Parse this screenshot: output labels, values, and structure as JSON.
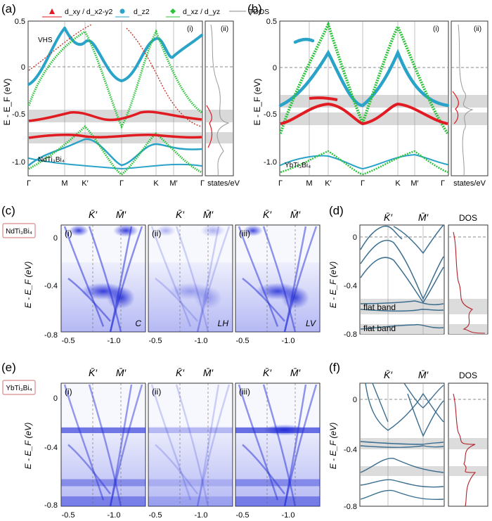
{
  "figure": {
    "panel_letters": {
      "a": "(a)",
      "b": "(b)",
      "c": "(c)",
      "d": "(d)",
      "e": "(e)",
      "f": "(f)"
    },
    "legend": {
      "red": "d_xy / d_x2-y2",
      "cyan": "d_z2",
      "green": "d_xz / d_yz",
      "tdos": "TDOS"
    },
    "colors": {
      "red": "#e11b22",
      "cyan": "#2aa3c9",
      "green": "#2cc33a",
      "grey": "#777777",
      "arpes": "#2a33d8",
      "dft_line": "#3b6e8f",
      "dos_line": "#b2202a"
    },
    "top": {
      "a": {
        "material": "NdTi₃Bi₄",
        "sub_i": "(i)",
        "sub_ii": "(ii)",
        "vhs": "VHS",
        "yticks": [
          "0.5",
          "0",
          "-0.5",
          "-1.0"
        ],
        "ylabel": "E - E_F (eV)",
        "kpath": [
          "Γ",
          "M",
          "K′",
          "Γ",
          "K",
          "M′",
          "Γ"
        ],
        "dos_unit": "states/eV"
      },
      "b": {
        "material": "YbTi₃Bi₄",
        "sub_i": "(i)",
        "sub_ii": "(ii)",
        "yticks": [
          "0.5",
          "0",
          "-0.5",
          "-1.0"
        ],
        "ylabel": "E - E_F (eV)",
        "kpath": [
          "Γ",
          "M",
          "K′",
          "Γ",
          "K",
          "M′",
          "Γ"
        ],
        "dos_unit": "states/eV"
      }
    },
    "arpes": {
      "c": {
        "material": "NdTi₃Bi₄",
        "panels": [
          {
            "sub": "(i)",
            "pol": "C"
          },
          {
            "sub": "(ii)",
            "pol": "LH"
          },
          {
            "sub": "(iii)",
            "pol": "LV"
          }
        ],
        "yticks": [
          "0",
          "-0.4",
          "-0.8"
        ],
        "xticks": [
          "-0.5",
          "-1.0"
        ],
        "kpoints": [
          "K̄′",
          "M̄′"
        ],
        "ylabel": "E - E_F (eV)"
      },
      "e": {
        "material": "YbTi₃Bi₄",
        "panels": [
          {
            "sub": "(i)",
            "pol": ""
          },
          {
            "sub": "(ii)",
            "pol": ""
          },
          {
            "sub": "(iii)",
            "pol": ""
          }
        ],
        "yticks": [
          "0",
          "-0.4",
          "-0.8"
        ],
        "xticks": [
          "-0.5",
          "-1.0"
        ],
        "kpoints": [
          "K̄′",
          "M̄′"
        ],
        "ylabel": "E - E_F (eV)"
      }
    },
    "calc": {
      "d": {
        "yticks": [
          "0",
          "-0.4",
          "-0.8"
        ],
        "kpoints": [
          "K̄′",
          "M̄′"
        ],
        "dos": "DOS",
        "ylabel": "E - E_F (eV)",
        "flat1": "flat band",
        "flat2": "flat band"
      },
      "f": {
        "yticks": [
          "0",
          "-0.4",
          "-0.8"
        ],
        "kpoints": [
          "K̄′",
          "M̄′"
        ],
        "dos": "DOS",
        "ylabel": "E - E_F (eV)"
      }
    }
  }
}
